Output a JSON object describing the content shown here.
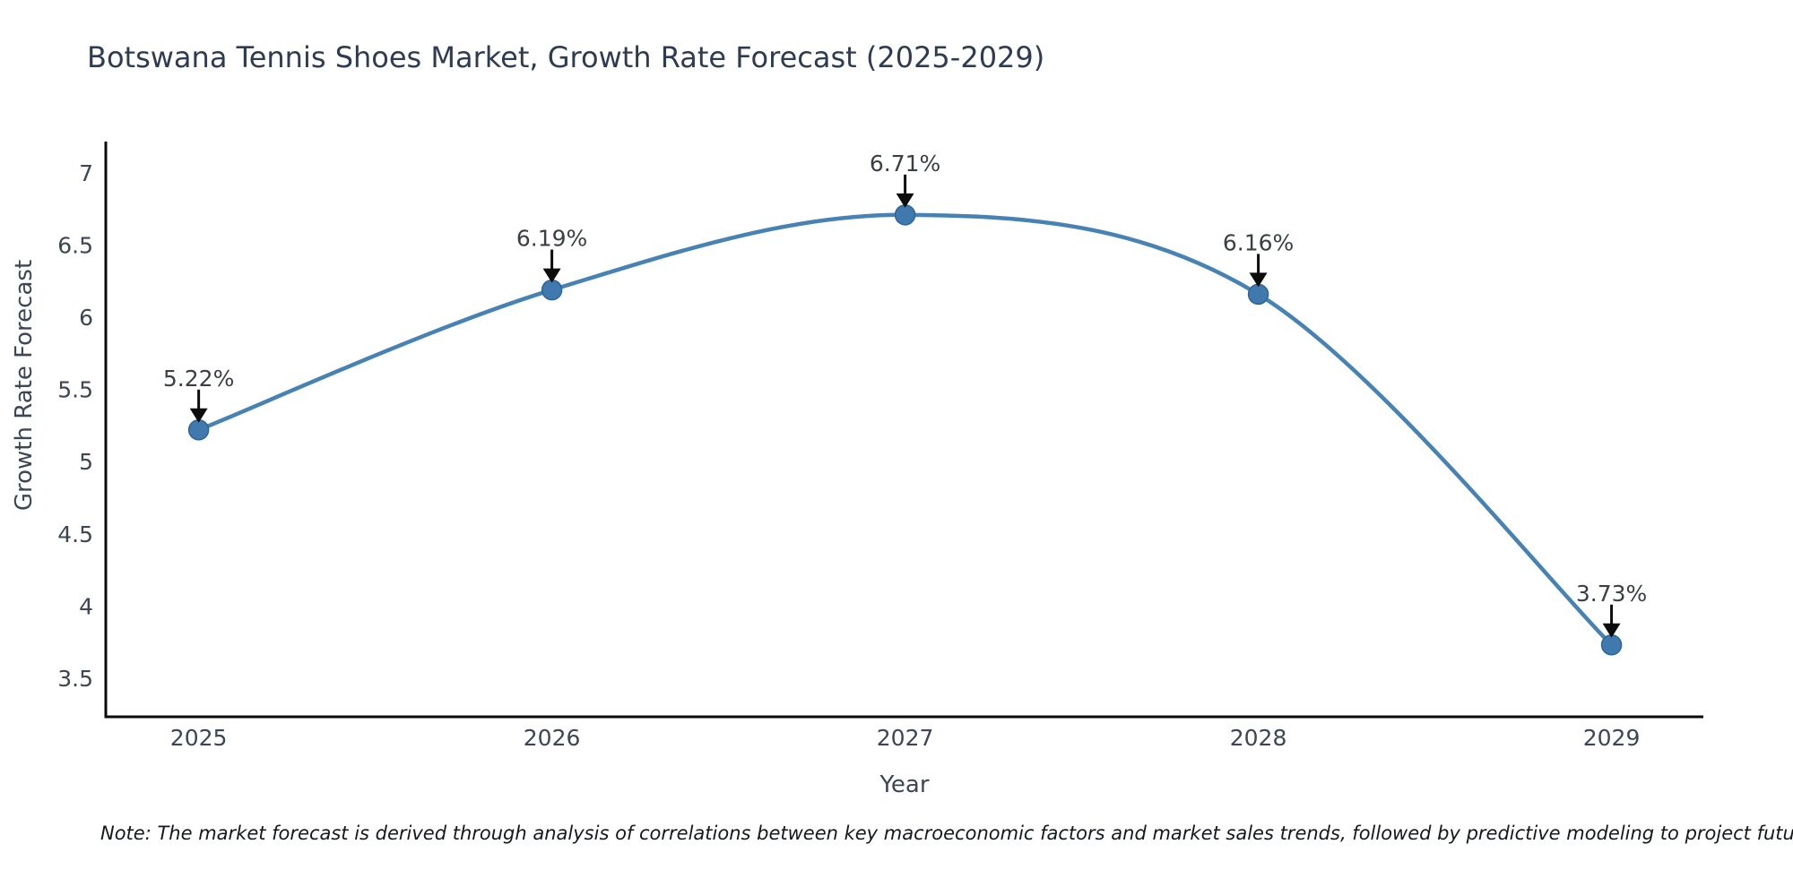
{
  "chart_data": {
    "type": "line",
    "title": "Botswana Tennis Shoes Market, Growth Rate Forecast (2025-2029)",
    "xlabel": "Year",
    "ylabel": "Growth Rate Forecast",
    "x": [
      2025,
      2026,
      2027,
      2028,
      2029
    ],
    "series": [
      {
        "name": "Growth Rate Forecast",
        "values": [
          5.22,
          6.19,
          6.71,
          6.16,
          3.73
        ],
        "point_labels": [
          "5.22%",
          "6.19%",
          "6.71%",
          "6.16%",
          "3.73%"
        ]
      }
    ],
    "xticks": {
      "values": [
        2025,
        2026,
        2027,
        2028,
        2029
      ],
      "labels": [
        "2025",
        "2026",
        "2027",
        "2028",
        "2029"
      ]
    },
    "yticks": {
      "values": [
        3.5,
        4,
        4.5,
        5,
        5.5,
        6,
        6.5,
        7
      ],
      "labels": [
        "3.5",
        "4",
        "4.5",
        "5",
        "5.5",
        "6",
        "6.5",
        "7"
      ]
    },
    "xlim": [
      2024.737,
      2029.26
    ],
    "ylim": [
      3.232,
      7.218
    ],
    "grid": false,
    "legend": "none",
    "line_shape": "spline",
    "annotation_arrows": "down",
    "colors": {
      "line": "#4682b4",
      "marker": "#4079ae",
      "marker_edge": "#2f6496",
      "spine": "#0a0a0a",
      "title_text": "#2e3c52",
      "tick_text": "#3c4654",
      "annotation_text": "#3a3e45",
      "arrow": "#0d0d0d",
      "note_text": "#15181c",
      "background": "#ffffff"
    },
    "note": "Note: The market forecast is derived through analysis of correlations between key macroeconomic factors and market sales trends, followed by predictive modeling to project future sales"
  }
}
